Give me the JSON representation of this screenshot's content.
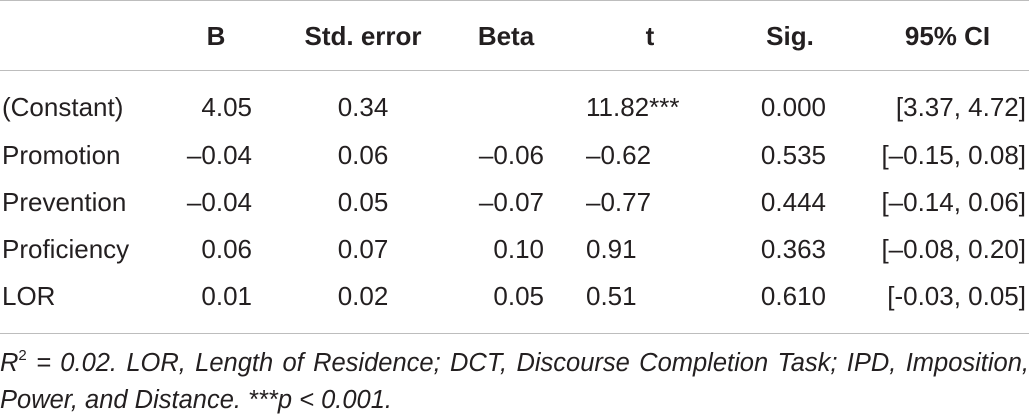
{
  "table": {
    "headers": {
      "label": "",
      "b": "B",
      "std_error": "Std. error",
      "beta": "Beta",
      "t": "t",
      "sig": "Sig.",
      "ci": "95% CI"
    },
    "rows": [
      {
        "label": "(Constant)",
        "b": "4.05",
        "std_error": "0.34",
        "beta": "",
        "t": "11.82***",
        "sig": "0.000",
        "ci": "[3.37, 4.72]"
      },
      {
        "label": "Promotion",
        "b": "–0.04",
        "std_error": "0.06",
        "beta": "–0.06",
        "t": "–0.62",
        "sig": "0.535",
        "ci": "[–0.15, 0.08]"
      },
      {
        "label": "Prevention",
        "b": "–0.04",
        "std_error": "0.05",
        "beta": "–0.07",
        "t": "–0.77",
        "sig": "0.444",
        "ci": "[–0.14, 0.06]"
      },
      {
        "label": "Proficiency",
        "b": "0.06",
        "std_error": "0.07",
        "beta": "0.10",
        "t": "0.91",
        "sig": "0.363",
        "ci": "[–0.08, 0.20]"
      },
      {
        "label": "LOR",
        "b": "0.01",
        "std_error": "0.02",
        "beta": "0.05",
        "t": "0.51",
        "sig": "0.610",
        "ci": "[-0.03, 0.05]"
      }
    ]
  },
  "footnote": {
    "r_symbol": "R",
    "r_exponent": "2",
    "text": " = 0.02. LOR, Length of Residence; DCT, Discourse Completion Task; IPD, Imposition, Power, and Distance. ***p < 0.001."
  }
}
